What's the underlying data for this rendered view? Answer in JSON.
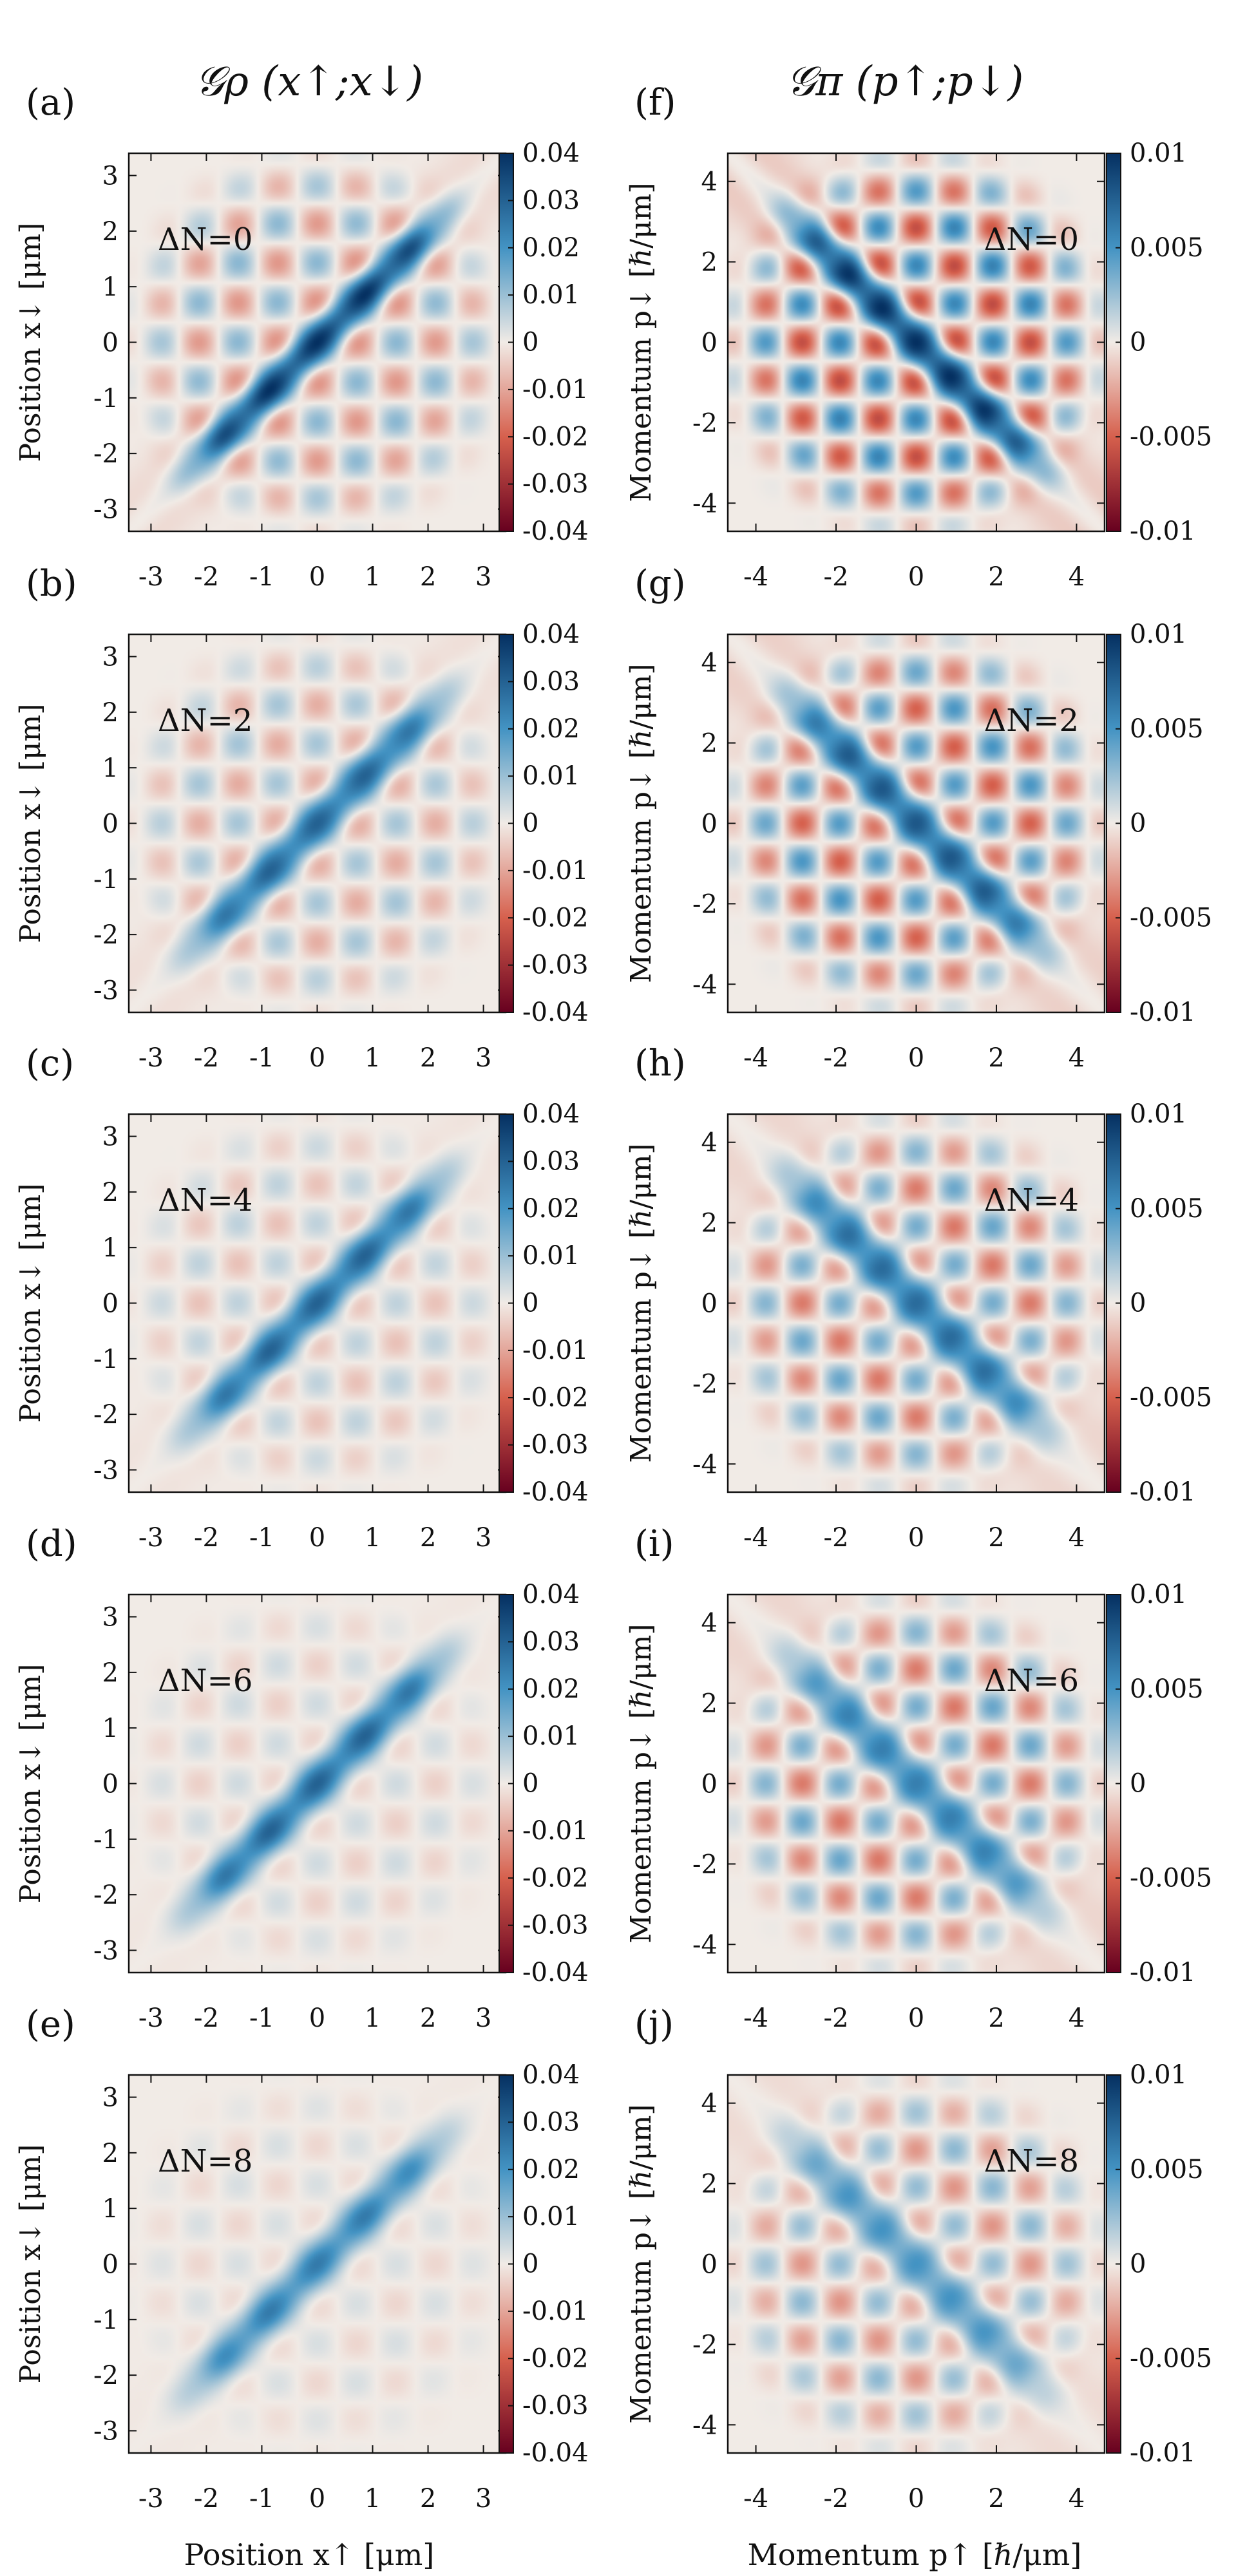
{
  "columns": [
    {
      "header": "𝒢ρ (x↑;x↓)",
      "xlabel": "Position x↑ [μm]",
      "ylabel": "Position x↓ [μm]"
    },
    {
      "header": "𝒢π (p↑;p↓)",
      "xlabel": "Momentum p↑ [ℏ/μm]",
      "ylabel": "Momentum p↓ [ℏ/μm]"
    }
  ],
  "palette": {
    "negative": "#7a1800",
    "zero": "#f1ebe6",
    "positive": "#053061"
  },
  "chart_data": [
    {
      "type": "heatmap",
      "panel": "(a)",
      "annotation": "ΔN=0",
      "xlim": [
        -3.4,
        3.4
      ],
      "ylim": [
        -3.4,
        3.4
      ],
      "xticks": [
        "-3",
        "-2",
        "-1",
        "0",
        "1",
        "2",
        "3"
      ],
      "yticks": [
        "-3",
        "-2",
        "-1",
        "0",
        "1",
        "2",
        "3"
      ],
      "colorbar_ticks": [
        "0.04",
        "0.03",
        "0.02",
        "0.01",
        "0",
        "-0.01",
        "-0.02",
        "-0.03",
        "-0.04"
      ],
      "zlim": [
        -0.04,
        0.04
      ],
      "diagonal": "positive",
      "diag_peak": 0.04,
      "diag_width": 0.22,
      "ripple": 0.012
    },
    {
      "type": "heatmap",
      "panel": "(b)",
      "annotation": "ΔN=2",
      "xlim": [
        -3.4,
        3.4
      ],
      "ylim": [
        -3.4,
        3.4
      ],
      "xticks": [
        "-3",
        "-2",
        "-1",
        "0",
        "1",
        "2",
        "3"
      ],
      "yticks": [
        "-3",
        "-2",
        "-1",
        "0",
        "1",
        "2",
        "3"
      ],
      "colorbar_ticks": [
        "0.04",
        "0.03",
        "0.02",
        "0.01",
        "0",
        "-0.01",
        "-0.02",
        "-0.03",
        "-0.04"
      ],
      "zlim": [
        -0.04,
        0.04
      ],
      "diagonal": "positive",
      "diag_peak": 0.03,
      "diag_width": 0.25,
      "ripple": 0.009
    },
    {
      "type": "heatmap",
      "panel": "(c)",
      "annotation": "ΔN=4",
      "xlim": [
        -3.4,
        3.4
      ],
      "ylim": [
        -3.4,
        3.4
      ],
      "xticks": [
        "-3",
        "-2",
        "-1",
        "0",
        "1",
        "2",
        "3"
      ],
      "yticks": [
        "-3",
        "-2",
        "-1",
        "0",
        "1",
        "2",
        "3"
      ],
      "colorbar_ticks": [
        "0.04",
        "0.03",
        "0.02",
        "0.01",
        "0",
        "-0.01",
        "-0.02",
        "-0.03",
        "-0.04"
      ],
      "zlim": [
        -0.04,
        0.04
      ],
      "diagonal": "positive",
      "diag_peak": 0.03,
      "diag_width": 0.25,
      "ripple": 0.006
    },
    {
      "type": "heatmap",
      "panel": "(d)",
      "annotation": "ΔN=6",
      "xlim": [
        -3.4,
        3.4
      ],
      "ylim": [
        -3.4,
        3.4
      ],
      "xticks": [
        "-3",
        "-2",
        "-1",
        "0",
        "1",
        "2",
        "3"
      ],
      "yticks": [
        "-3",
        "-2",
        "-1",
        "0",
        "1",
        "2",
        "3"
      ],
      "colorbar_ticks": [
        "0.04",
        "0.03",
        "0.02",
        "0.01",
        "0",
        "-0.01",
        "-0.02",
        "-0.03",
        "-0.04"
      ],
      "zlim": [
        -0.04,
        0.04
      ],
      "diagonal": "positive",
      "diag_peak": 0.03,
      "diag_width": 0.25,
      "ripple": 0.004
    },
    {
      "type": "heatmap",
      "panel": "(e)",
      "annotation": "ΔN=8",
      "xlim": [
        -3.4,
        3.4
      ],
      "ylim": [
        -3.4,
        3.4
      ],
      "xticks": [
        "-3",
        "-2",
        "-1",
        "0",
        "1",
        "2",
        "3"
      ],
      "yticks": [
        "-3",
        "-2",
        "-1",
        "0",
        "1",
        "2",
        "3"
      ],
      "colorbar_ticks": [
        "0.04",
        "0.03",
        "0.02",
        "0.01",
        "0",
        "-0.01",
        "-0.02",
        "-0.03",
        "-0.04"
      ],
      "zlim": [
        -0.04,
        0.04
      ],
      "diagonal": "positive",
      "diag_peak": 0.025,
      "diag_width": 0.25,
      "ripple": 0.003
    },
    {
      "type": "heatmap",
      "panel": "(f)",
      "annotation": "ΔN=0",
      "xlim": [
        -4.7,
        4.7
      ],
      "ylim": [
        -4.7,
        4.7
      ],
      "xticks": [
        "-4",
        "-2",
        "0",
        "2",
        "4"
      ],
      "yticks": [
        "-4",
        "-2",
        "0",
        "2",
        "4"
      ],
      "colorbar_ticks": [
        "0.01",
        "0.005",
        "0",
        "-0.005",
        "-0.01"
      ],
      "zlim": [
        -0.01,
        0.01
      ],
      "diagonal": "anti",
      "diag_peak": 0.01,
      "diag_width": 0.35,
      "ripple": 0.006
    },
    {
      "type": "heatmap",
      "panel": "(g)",
      "annotation": "ΔN=2",
      "xlim": [
        -4.7,
        4.7
      ],
      "ylim": [
        -4.7,
        4.7
      ],
      "xticks": [
        "-4",
        "-2",
        "0",
        "2",
        "4"
      ],
      "yticks": [
        "-4",
        "-2",
        "0",
        "2",
        "4"
      ],
      "colorbar_ticks": [
        "0.01",
        "0.005",
        "0",
        "-0.005",
        "-0.01"
      ],
      "zlim": [
        -0.01,
        0.01
      ],
      "diagonal": "anti",
      "diag_peak": 0.008,
      "diag_width": 0.4,
      "ripple": 0.005
    },
    {
      "type": "heatmap",
      "panel": "(h)",
      "annotation": "ΔN=4",
      "xlim": [
        -4.7,
        4.7
      ],
      "ylim": [
        -4.7,
        4.7
      ],
      "xticks": [
        "-4",
        "-2",
        "0",
        "2",
        "4"
      ],
      "yticks": [
        "-4",
        "-2",
        "0",
        "2",
        "4"
      ],
      "colorbar_ticks": [
        "0.01",
        "0.005",
        "0",
        "-0.005",
        "-0.01"
      ],
      "zlim": [
        -0.01,
        0.01
      ],
      "diagonal": "anti",
      "diag_peak": 0.007,
      "diag_width": 0.45,
      "ripple": 0.004
    },
    {
      "type": "heatmap",
      "panel": "(i)",
      "annotation": "ΔN=6",
      "xlim": [
        -4.7,
        4.7
      ],
      "ylim": [
        -4.7,
        4.7
      ],
      "xticks": [
        "-4",
        "-2",
        "0",
        "2",
        "4"
      ],
      "yticks": [
        "-4",
        "-2",
        "0",
        "2",
        "4"
      ],
      "colorbar_ticks": [
        "0.01",
        "0.005",
        "0",
        "-0.005",
        "-0.01"
      ],
      "zlim": [
        -0.01,
        0.01
      ],
      "diagonal": "anti",
      "diag_peak": 0.006,
      "diag_width": 0.45,
      "ripple": 0.004
    },
    {
      "type": "heatmap",
      "panel": "(j)",
      "annotation": "ΔN=8",
      "xlim": [
        -4.7,
        4.7
      ],
      "ylim": [
        -4.7,
        4.7
      ],
      "xticks": [
        "-4",
        "-2",
        "0",
        "2",
        "4"
      ],
      "yticks": [
        "-4",
        "-2",
        "0",
        "2",
        "4"
      ],
      "colorbar_ticks": [
        "0.01",
        "0.005",
        "0",
        "-0.005",
        "-0.01"
      ],
      "zlim": [
        -0.01,
        0.01
      ],
      "diagonal": "anti",
      "diag_peak": 0.005,
      "diag_width": 0.45,
      "ripple": 0.003
    }
  ]
}
